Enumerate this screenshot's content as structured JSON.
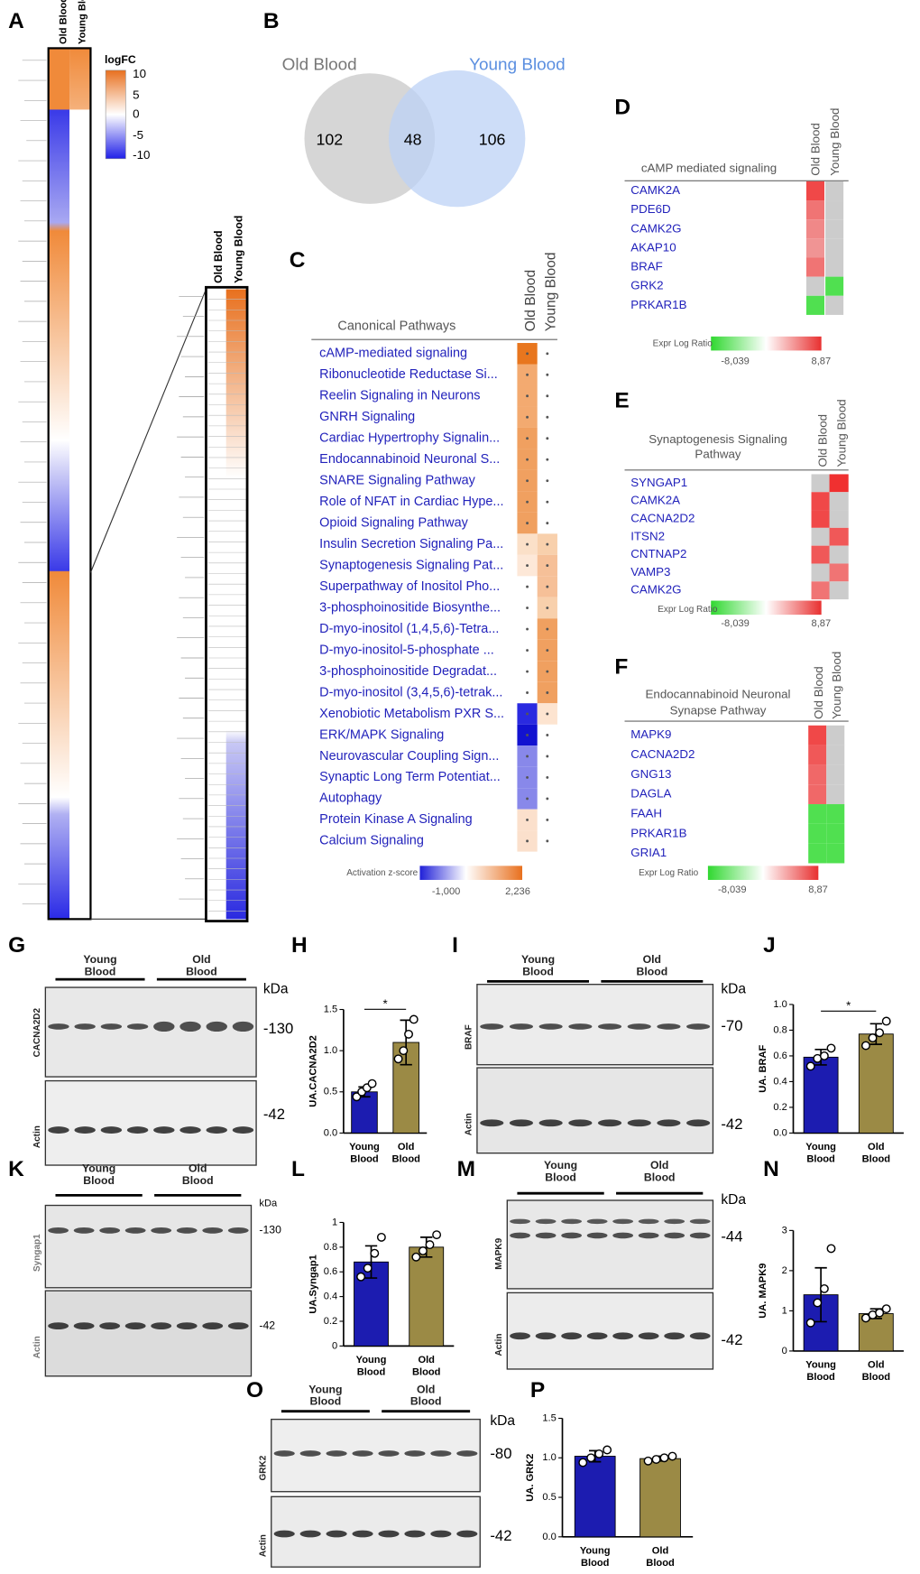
{
  "panel_labels": {
    "A": "A",
    "B": "B",
    "C": "C",
    "D": "D",
    "E": "E",
    "F": "F",
    "G": "G",
    "I": "I",
    "K": "K",
    "M": "M",
    "O": "O"
  },
  "heatmap": {
    "columns": [
      "Old Blood",
      "Young Blood"
    ],
    "legend_title": "logFC",
    "legend_ticks": [
      "10",
      "5",
      "0",
      "-5",
      "-10"
    ],
    "zoom_columns": [
      "Old Blood",
      "Young Blood"
    ]
  },
  "venn": {
    "left": {
      "name": "Old Blood",
      "count": 102
    },
    "right": {
      "name": "Young Blood",
      "count": 106
    },
    "overlap": 48
  },
  "pathways": {
    "title": "Canonical Pathways",
    "columns": [
      "Old Blood",
      "Young Blood"
    ],
    "rows": [
      {
        "name": "cAMP-mediated signaling",
        "old": "#e8761e",
        "young": null
      },
      {
        "name": "Ribonucleotide Reductase Si...",
        "old": "#f3aa70",
        "young": null
      },
      {
        "name": "Reelin Signaling in Neurons",
        "old": "#f3aa70",
        "young": null
      },
      {
        "name": "GNRH Signaling",
        "old": "#f3aa70",
        "young": null
      },
      {
        "name": "Cardiac Hypertrophy Signalin...",
        "old": "#f0a060",
        "young": null
      },
      {
        "name": "Endocannabinoid Neuronal S...",
        "old": "#f0a060",
        "young": null
      },
      {
        "name": "SNARE Signaling Pathway",
        "old": "#f0a060",
        "young": null
      },
      {
        "name": "Role of NFAT in Cardiac Hype...",
        "old": "#f0a060",
        "young": null
      },
      {
        "name": "Opioid Signaling Pathway",
        "old": "#f0a060",
        "young": null
      },
      {
        "name": "Insulin Secretion Signaling Pa...",
        "old": "#fbe0c8",
        "young": "#f8d0ac"
      },
      {
        "name": "Synaptogenesis Signaling Pat...",
        "old": "#fde8d8",
        "young": "#f6c098"
      },
      {
        "name": "Superpathway of Inositol Pho...",
        "old": null,
        "young": "#f6c098"
      },
      {
        "name": "3-phosphoinositide Biosynthe...",
        "old": null,
        "young": "#f8d0ac"
      },
      {
        "name": "D-myo-inositol (1,4,5,6)-Tetra...",
        "old": null,
        "young": "#f0a060"
      },
      {
        "name": "D-myo-inositol-5-phosphate ...",
        "old": null,
        "young": "#f0a060"
      },
      {
        "name": "3-phosphoinositide Degradat...",
        "old": null,
        "young": "#f0a060"
      },
      {
        "name": "D-myo-inositol (3,4,5,6)-tetrak...",
        "old": null,
        "young": "#f0a060"
      },
      {
        "name": "Xenobiotic Metabolism PXR S...",
        "old": "#2a2ae0",
        "young": "#fde4d0"
      },
      {
        "name": "ERK/MAPK Signaling",
        "old": "#1212d0",
        "young": null
      },
      {
        "name": "Neurovascular Coupling Sign...",
        "old": "#8888ea",
        "young": null
      },
      {
        "name": "Synaptic Long Term Potentiat...",
        "old": "#8888ea",
        "young": null
      },
      {
        "name": "Autophagy",
        "old": "#8888ea",
        "young": null
      },
      {
        "name": "Protein Kinase A Signaling",
        "old": "#fbe0cc",
        "young": null
      },
      {
        "name": "Calcium Signaling",
        "old": "#fbe0cc",
        "young": null
      }
    ],
    "legend_title": "Activation z-score",
    "legend_min": "-1,000",
    "legend_max": "2,236"
  },
  "gene_panels": [
    {
      "title_lines": [
        "cAMP mediated signaling"
      ],
      "columns": [
        "Old Blood",
        "Young Blood"
      ],
      "genes": [
        {
          "name": "CAMK2A",
          "old": "#f04848",
          "young": "#cccccc"
        },
        {
          "name": "PDE6D",
          "old": "#f07474",
          "young": "#cccccc"
        },
        {
          "name": "CAMK2G",
          "old": "#f08888",
          "young": "#cccccc"
        },
        {
          "name": "AKAP10",
          "old": "#f09494",
          "young": "#cccccc"
        },
        {
          "name": "BRAF",
          "old": "#f07474",
          "young": "#cccccc"
        },
        {
          "name": "GRK2",
          "old": "#cccccc",
          "young": "#50e050"
        },
        {
          "name": "PRKAR1B",
          "old": "#50e050",
          "young": "#cccccc"
        }
      ],
      "legend_title": "Expr Log Ratio",
      "legend_min": "-8,039",
      "legend_max": "8,87"
    },
    {
      "title_lines": [
        "Synaptogenesis Signaling",
        "Pathway"
      ],
      "columns": [
        "Old Blood",
        "Young Blood"
      ],
      "genes": [
        {
          "name": "SYNGAP1",
          "old": "#cccccc",
          "young": "#f03030"
        },
        {
          "name": "CAMK2A",
          "old": "#f04848",
          "young": "#cccccc"
        },
        {
          "name": "CACNA2D2",
          "old": "#f04848",
          "young": "#cccccc"
        },
        {
          "name": "ITSN2",
          "old": "#cccccc",
          "young": "#f05858"
        },
        {
          "name": "CNTNAP2",
          "old": "#f05858",
          "young": "#cccccc"
        },
        {
          "name": "VAMP3",
          "old": "#cccccc",
          "young": "#f07474"
        },
        {
          "name": "CAMK2G",
          "old": "#f07474",
          "young": "#cccccc"
        }
      ],
      "legend_title": "Expr Log Ratio",
      "legend_min": "-8,039",
      "legend_max": "8,87"
    },
    {
      "title_lines": [
        "Endocannabinoid Neuronal",
        "Synapse Pathway"
      ],
      "columns": [
        "Old Blood",
        "Young Blood"
      ],
      "genes": [
        {
          "name": "MAPK9",
          "old": "#f04848",
          "young": "#cccccc"
        },
        {
          "name": "CACNA2D2",
          "old": "#f05858",
          "young": "#cccccc"
        },
        {
          "name": "GNG13",
          "old": "#f06868",
          "young": "#cccccc"
        },
        {
          "name": "DAGLA",
          "old": "#f06868",
          "young": "#cccccc"
        },
        {
          "name": "FAAH",
          "old": "#50e050",
          "young": "#50e050"
        },
        {
          "name": "PRKAR1B",
          "old": "#50e050",
          "young": "#50e050"
        },
        {
          "name": "GRIA1",
          "old": "#50e050",
          "young": "#50e050"
        }
      ],
      "legend_title": "Expr Log Ratio",
      "legend_min": "-8,039",
      "legend_max": "8,87"
    }
  ],
  "blots": [
    {
      "groups": [
        "Young Blood",
        "Old Blood"
      ],
      "unit": "kDa",
      "rows": [
        {
          "protein": "CACNA2D2",
          "marker": "-130"
        },
        {
          "protein": "Actin",
          "marker": "-42"
        }
      ]
    },
    {
      "groups": [
        "Young Blood",
        "Old Blood"
      ],
      "unit": "kDa",
      "rows": [
        {
          "protein": "BRAF",
          "marker": "-70"
        },
        {
          "protein": "Actin",
          "marker": "-42"
        }
      ]
    },
    {
      "groups": [
        "Young Blood",
        "Old Blood"
      ],
      "unit": "kDa",
      "rows": [
        {
          "protein": "Syngap1",
          "marker": "-130"
        },
        {
          "protein": "Actin",
          "marker": "-42"
        }
      ]
    },
    {
      "groups": [
        "Young Blood",
        "Old Blood"
      ],
      "unit": "kDa",
      "rows": [
        {
          "protein": "MAPK9",
          "marker": "-44"
        },
        {
          "protein": "Actin",
          "marker": "-42"
        }
      ]
    },
    {
      "groups": [
        "Young Blood",
        "Old Blood"
      ],
      "unit": "kDa",
      "rows": [
        {
          "protein": "GRK2",
          "marker": "-80"
        },
        {
          "protein": "Actin",
          "marker": "-42"
        }
      ]
    }
  ],
  "chart_data": [
    {
      "type": "bar",
      "label": "H",
      "y_label": "UA.CACNA2D2",
      "categories": [
        "Young Blood",
        "Old Blood"
      ],
      "values": [
        0.5,
        1.1
      ],
      "errors": [
        0.06,
        0.27
      ],
      "points": [
        [
          0.44,
          0.5,
          0.55,
          0.6
        ],
        [
          0.9,
          1.0,
          1.2,
          1.38
        ]
      ],
      "colors": [
        "#1c1cb0",
        "#9b8a45"
      ],
      "ylim": [
        0,
        1.5
      ],
      "yticks": [
        {
          "value": 0,
          "label": "0.0"
        },
        0.5,
        {
          "value": 1,
          "label": "1.0"
        },
        1.5
      ],
      "annotation": "*"
    },
    {
      "type": "bar",
      "label": "J",
      "y_label": "UA. BRAF",
      "categories": [
        "Young Blood",
        "Old Blood"
      ],
      "values": [
        0.59,
        0.77
      ],
      "errors": [
        0.06,
        0.08
      ],
      "points": [
        [
          0.52,
          0.58,
          0.6,
          0.66
        ],
        [
          0.68,
          0.74,
          0.78,
          0.87
        ]
      ],
      "colors": [
        "#1c1cb0",
        "#9b8a45"
      ],
      "ylim": [
        0,
        1
      ],
      "yticks": [
        {
          "value": 0,
          "label": "0.0"
        },
        0.2,
        0.4,
        0.6,
        0.8,
        {
          "value": 1,
          "label": "1.0"
        }
      ],
      "annotation": "*"
    },
    {
      "type": "bar",
      "label": "L",
      "y_label": "UA.Syngap1",
      "categories": [
        "Young Blood",
        "Old Blood"
      ],
      "values": [
        0.68,
        0.8
      ],
      "errors": [
        0.13,
        0.08
      ],
      "points": [
        [
          0.56,
          0.63,
          0.75,
          0.88
        ],
        [
          0.72,
          0.77,
          0.82,
          0.9
        ]
      ],
      "colors": [
        "#1c1cb0",
        "#9b8a45"
      ],
      "ylim": [
        0,
        1
      ],
      "yticks": [
        0,
        0.2,
        0.4,
        0.6,
        0.8,
        1
      ]
    },
    {
      "type": "bar",
      "label": "N",
      "y_label": "UA. MAPK9",
      "categories": [
        "Young Blood",
        "Old Blood"
      ],
      "values": [
        1.4,
        0.93
      ],
      "errors": [
        0.67,
        0.12
      ],
      "points": [
        [
          0.7,
          1.2,
          1.55,
          2.55
        ],
        [
          0.82,
          0.9,
          0.95,
          1.05
        ]
      ],
      "colors": [
        "#1c1cb0",
        "#9b8a45"
      ],
      "ylim": [
        0,
        3
      ],
      "yticks": [
        0,
        1,
        2,
        3
      ]
    },
    {
      "type": "bar",
      "label": "P",
      "y_label": "UA. GRK2",
      "categories": [
        "Young Blood",
        "Old Blood"
      ],
      "values": [
        1.02,
        0.99
      ],
      "errors": [
        0.07,
        0.03
      ],
      "points": [
        [
          0.94,
          1.0,
          1.05,
          1.1
        ],
        [
          0.96,
          0.98,
          1.0,
          1.02
        ]
      ],
      "colors": [
        "#1c1cb0",
        "#9b8a45"
      ],
      "ylim": [
        0,
        1.5
      ],
      "yticks": [
        {
          "value": 0,
          "label": "0.0"
        },
        0.5,
        {
          "value": 1,
          "label": "1.0"
        },
        1.5
      ]
    }
  ]
}
